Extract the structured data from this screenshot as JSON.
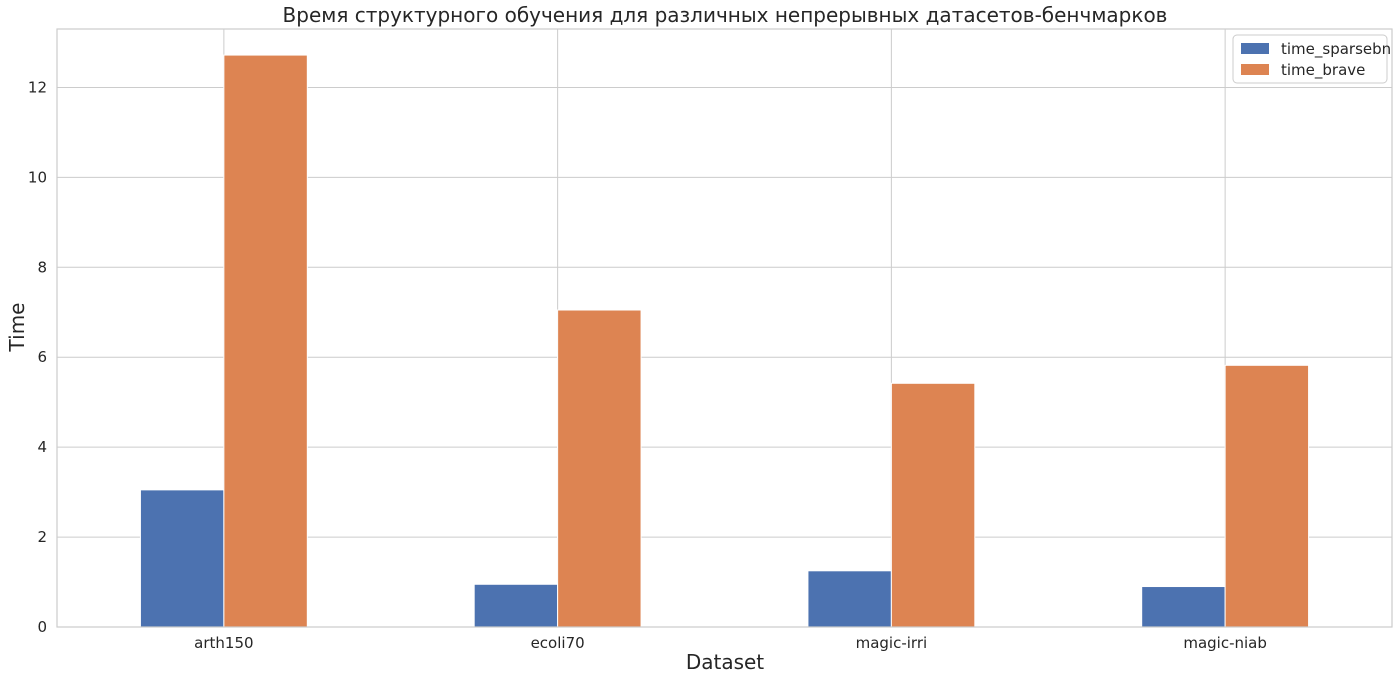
{
  "chart_data": {
    "type": "bar",
    "title": "Время структурного обучения для различных непрерывных датасетов-бенчмарков",
    "xlabel": "Dataset",
    "ylabel": "Time",
    "categories": [
      "arth150",
      "ecoli70",
      "magic-irri",
      "magic-niab"
    ],
    "series": [
      {
        "name": "time_sparsebn",
        "color": "#4c72b0",
        "values": [
          3.05,
          0.95,
          1.25,
          0.9
        ]
      },
      {
        "name": "time_brave",
        "color": "#dd8452",
        "values": [
          12.72,
          7.05,
          5.42,
          5.82
        ]
      }
    ],
    "ylim": [
      0,
      13.3
    ],
    "yticks": [
      0,
      2,
      4,
      6,
      8,
      10,
      12
    ],
    "grid": true,
    "legend_position": "top-right"
  }
}
